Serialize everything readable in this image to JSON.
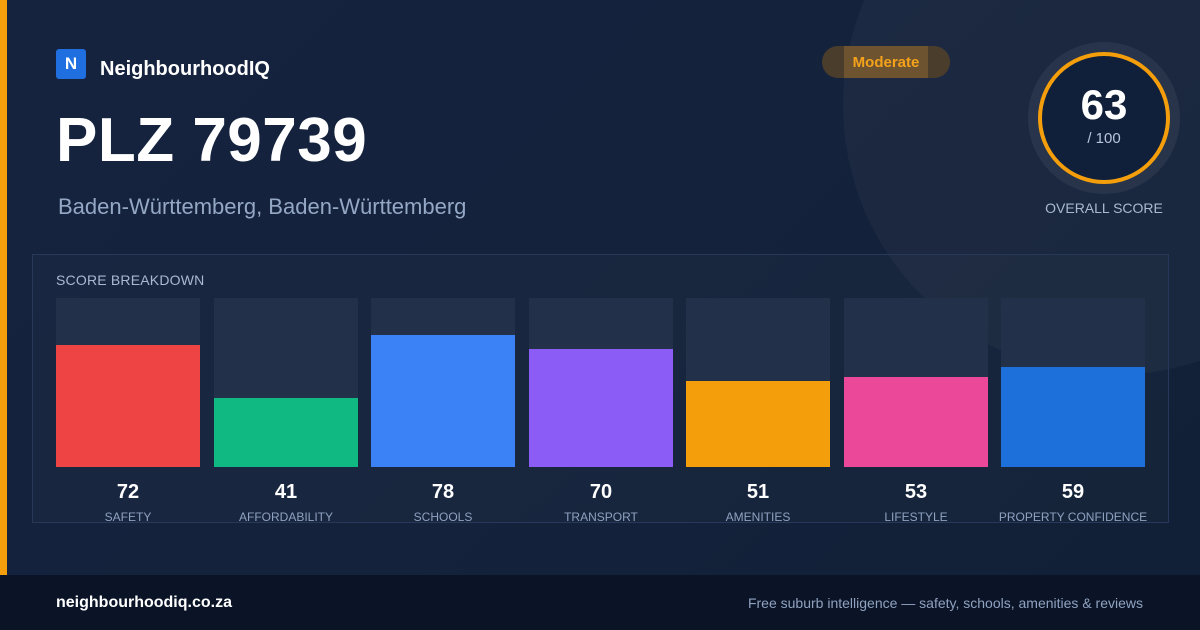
{
  "colors": {
    "accent": "#f59e0b",
    "brand": "#1f6fe0",
    "background": "#14223c"
  },
  "brand": {
    "logo_letter": "N",
    "name": "NeighbourhoodIQ"
  },
  "location": {
    "title": "PLZ 79739",
    "subtitle": "Baden-Württemberg, Baden-Württemberg"
  },
  "rating": {
    "label": "Moderate"
  },
  "overall_score": {
    "value": "63",
    "max": "/ 100",
    "label": "OVERALL SCORE"
  },
  "breakdown": {
    "title": "SCORE BREAKDOWN",
    "max_value": 100
  },
  "chart_data": {
    "type": "bar",
    "categories": [
      "SAFETY",
      "AFFORDABILITY",
      "SCHOOLS",
      "TRANSPORT",
      "AMENITIES",
      "LIFESTYLE",
      "PROPERTY CONFIDENCE"
    ],
    "values": [
      72,
      41,
      78,
      70,
      51,
      53,
      59
    ],
    "colors": [
      "#ef4444",
      "#10b981",
      "#3b82f6",
      "#8b5cf6",
      "#f59e0b",
      "#ec4899",
      "#1d6fd9"
    ],
    "ylim": [
      0,
      100
    ],
    "title": "",
    "xlabel": "",
    "ylabel": ""
  },
  "footer": {
    "url": "neighbourhoodiq.co.za",
    "tagline": "Free suburb intelligence — safety, schools, amenities & reviews"
  }
}
